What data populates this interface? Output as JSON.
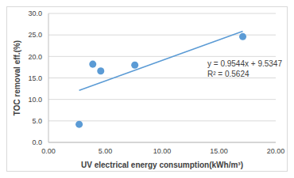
{
  "chart_data": {
    "type": "scatter",
    "x_label": "UV electrical energy consumption(kWh/m³)",
    "y_label": "TOC removal eff.(%)",
    "x": [
      2.7,
      3.9,
      4.6,
      7.6,
      17.1
    ],
    "values": [
      4.2,
      18.2,
      16.6,
      18.0,
      24.6
    ],
    "color": "#5b9bd5",
    "marker": "circle",
    "xlim": [
      0,
      20
    ],
    "ylim": [
      0,
      30
    ],
    "xticks": [
      {
        "value": 0,
        "label": "0.00"
      },
      {
        "value": 5,
        "label": "5.00"
      },
      {
        "value": 10,
        "label": "10.00"
      },
      {
        "value": 15,
        "label": "15.00"
      },
      {
        "value": 20,
        "label": "20.00"
      }
    ],
    "yticks": [
      {
        "value": 0,
        "label": "0.0"
      },
      {
        "value": 5,
        "label": "5.0"
      },
      {
        "value": 10,
        "label": "10.0"
      },
      {
        "value": 15,
        "label": "15.0"
      },
      {
        "value": 20,
        "label": "20.0"
      },
      {
        "value": 25,
        "label": "25.0"
      },
      {
        "value": 30,
        "label": "30.0"
      }
    ],
    "grid": true,
    "trendline": {
      "slope": 0.9544,
      "intercept": 9.5347,
      "line_style": "solid"
    },
    "annotations": [
      "y = 0.9544x + 9.5347",
      "R² = 0.5624"
    ]
  }
}
